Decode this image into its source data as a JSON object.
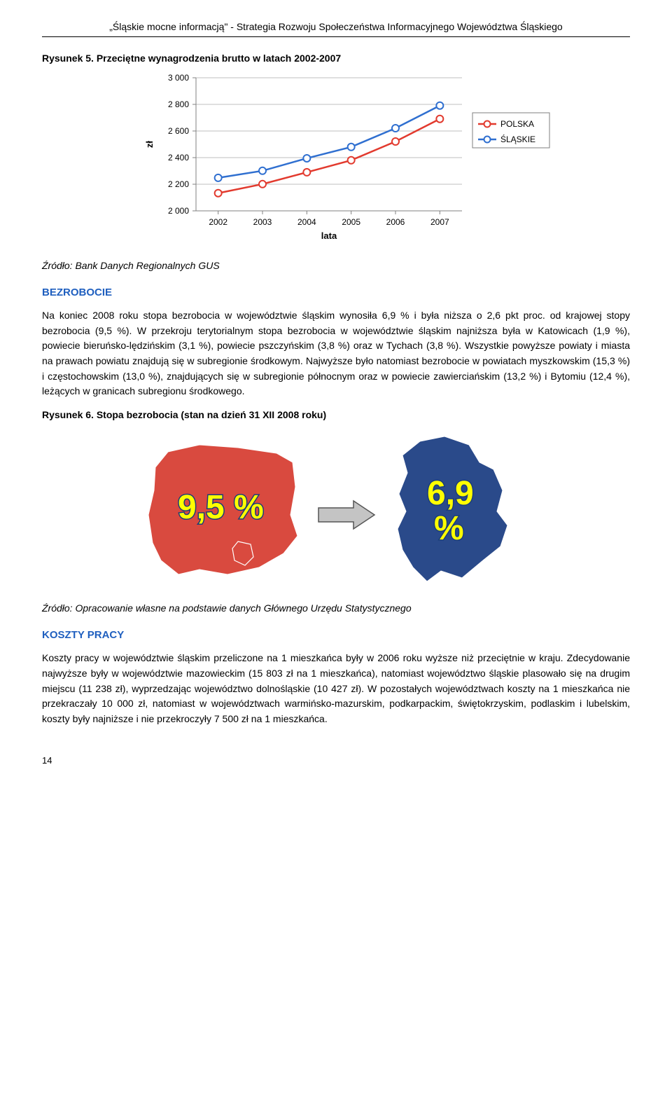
{
  "header": "„Śląskie mocne informacją\" - Strategia Rozwoju Społeczeństwa Informacyjnego Województwa Śląskiego",
  "fig5": {
    "title": "Rysunek 5. Przeciętne wynagrodzenia brutto w latach 2002-2007",
    "ylabel": "zł",
    "xlabel": "lata",
    "xticks": [
      "2002",
      "2003",
      "2004",
      "2005",
      "2006",
      "2007"
    ],
    "yticks": [
      "2 000",
      "2 200",
      "2 400",
      "2 600",
      "2 800",
      "3 000"
    ],
    "ymin": 2000,
    "ymax": 3000,
    "series": [
      {
        "name": "POLSKA",
        "color": "#e23a2e",
        "values": [
          2133,
          2201,
          2290,
          2380,
          2521,
          2691
        ]
      },
      {
        "name": "ŚLĄSKIE",
        "color": "#2f6fd0",
        "values": [
          2248,
          2301,
          2395,
          2480,
          2621,
          2791
        ]
      }
    ],
    "marker_fill": "#ffffff",
    "grid_color": "#bfbfbf",
    "bg": "#ffffff",
    "legend_border": "#7f7f7f",
    "source": "Źródło: Bank Danych Regionalnych GUS"
  },
  "bezrobocie": {
    "heading": "BEZROBOCIE",
    "text": "Na koniec 2008 roku stopa bezrobocia w województwie śląskim wynosiła 6,9 % i była niższa o 2,6 pkt proc. od krajowej stopy bezrobocia (9,5 %). W przekroju terytorialnym stopa bezrobocia w województwie śląskim najniższa była w Katowicach (1,9 %), powiecie bieruńsko-lędzińskim (3,1 %), powiecie pszczyńskim (3,8 %) oraz w Tychach (3,8 %). Wszystkie powyższe powiaty i miasta na prawach powiatu znajdują się w subregionie środkowym. Najwyższe było natomiast bezrobocie w powiatach myszkowskim (15,3 %) i częstochowskim (13,0 %), znajdujących się w subregionie północnym oraz w powiecie zawierciańskim (13,2 %) i Bytomiu (12,4 %), leżących w granicach subregionu środkowego."
  },
  "fig6": {
    "title": "Rysunek 6. Stopa bezrobocia (stan na dzień 31 XII 2008 roku)",
    "poland_pct": "9,5 %",
    "silesia_pct_top": "6,9",
    "silesia_pct_bottom": "%",
    "poland_fill": "#d94a3f",
    "silesia_fill": "#2a4a8a",
    "arrow_fill": "#c4c4c4",
    "arrow_stroke": "#555555",
    "source": "Źródło: Opracowanie własne na podstawie danych Głównego Urzędu Statystycznego"
  },
  "koszty": {
    "heading": "KOSZTY PRACY",
    "text": "Koszty pracy w województwie śląskim przeliczone na 1 mieszkańca były w 2006 roku wyższe niż przeciętnie w kraju. Zdecydowanie najwyższe były w województwie mazowieckim (15 803 zł na 1 mieszkańca), natomiast województwo śląskie plasowało się na drugim miejscu (11 238 zł), wyprzedzając województwo dolnośląskie (10 427 zł). W pozostałych województwach koszty na 1 mieszkańca nie przekraczały 10 000 zł, natomiast w województwach warmińsko-mazurskim, podkarpackim, świętokrzyskim, podlaskim i lubelskim, koszty były najniższe i nie przekroczyły 7 500 zł na 1 mieszkańca."
  },
  "page_number": "14"
}
